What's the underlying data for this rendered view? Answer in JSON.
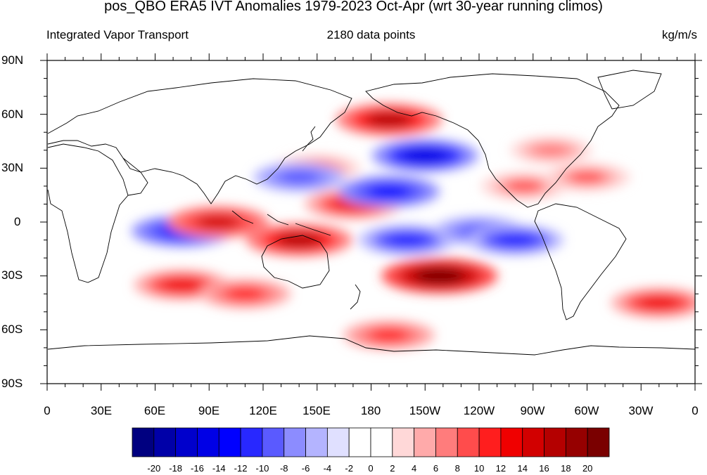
{
  "title": "pos_QBO ERA5 IVT Anomalies 1979-2023 Oct-Apr (wrt 30-year running climos)",
  "left_label": "Integrated Vapor Transport",
  "center_label": "2180 data points",
  "units": "kg/m/s",
  "map": {
    "projection": "cylindrical-equidistant",
    "center_longitude": 180,
    "lat_ticks": [
      "90N",
      "60N",
      "30N",
      "0",
      "30S",
      "60S",
      "90S"
    ],
    "lon_ticks": [
      "0",
      "30E",
      "60E",
      "90E",
      "120E",
      "150E",
      "180",
      "150W",
      "120W",
      "90W",
      "60W",
      "30W",
      "0"
    ],
    "features": [
      "coastlines",
      "filled-contours"
    ]
  },
  "colorbar": {
    "labels": [
      "-20",
      "-18",
      "-16",
      "-14",
      "-12",
      "-10",
      "-8",
      "-6",
      "-4",
      "-2",
      "0",
      "2",
      "4",
      "6",
      "8",
      "10",
      "12",
      "14",
      "16",
      "18",
      "20"
    ],
    "colors": [
      "#000080",
      "#0000a8",
      "#0000cc",
      "#0000e6",
      "#0000ff",
      "#2828ff",
      "#5a5aff",
      "#8c8cff",
      "#b4b4ff",
      "#e0e0ff",
      "#ffffff",
      "#ffffff",
      "#ffd8d8",
      "#ffaaaa",
      "#ff7c7c",
      "#ff4c4c",
      "#ff1e1e",
      "#f00000",
      "#d20000",
      "#b40000",
      "#960000",
      "#7a0000"
    ]
  },
  "anomaly_patches": [
    {
      "lon": 190,
      "lat": 57,
      "value": 16
    },
    {
      "lon": 150,
      "lat": 30,
      "value": 8
    },
    {
      "lon": 210,
      "lat": 37,
      "value": -16
    },
    {
      "lon": 140,
      "lat": 25,
      "value": -10
    },
    {
      "lon": 170,
      "lat": 10,
      "value": 12
    },
    {
      "lon": 190,
      "lat": 17,
      "value": -14
    },
    {
      "lon": 75,
      "lat": -5,
      "value": -14
    },
    {
      "lon": 95,
      "lat": 0,
      "value": 14
    },
    {
      "lon": 140,
      "lat": -10,
      "value": 16
    },
    {
      "lon": 200,
      "lat": -10,
      "value": -12
    },
    {
      "lon": 240,
      "lat": -5,
      "value": -10
    },
    {
      "lon": 260,
      "lat": -10,
      "value": -12
    },
    {
      "lon": 218,
      "lat": -30,
      "value": 20
    },
    {
      "lon": 75,
      "lat": -35,
      "value": 12
    },
    {
      "lon": 110,
      "lat": -40,
      "value": 10
    },
    {
      "lon": 340,
      "lat": -45,
      "value": 12
    },
    {
      "lon": 190,
      "lat": -63,
      "value": 10
    },
    {
      "lon": 265,
      "lat": 20,
      "value": 8
    },
    {
      "lon": 300,
      "lat": 25,
      "value": 8
    },
    {
      "lon": 280,
      "lat": 40,
      "value": 6
    }
  ]
}
